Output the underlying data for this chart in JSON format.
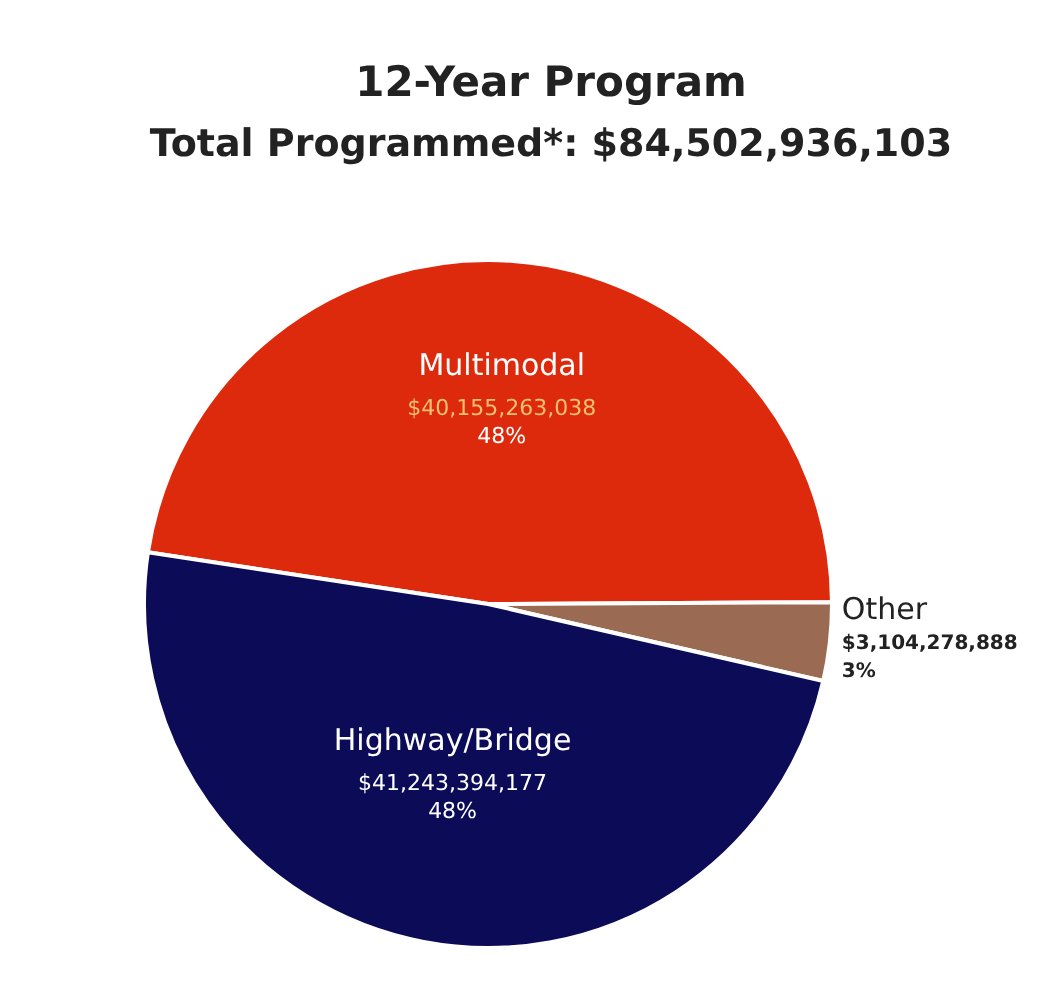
{
  "chart_data": {
    "type": "pie",
    "title": "12-Year Program",
    "subtitle": "Total Programmed*: $84,502,936,103",
    "categories": [
      "Multimodal",
      "Other",
      "Highway/Bridge"
    ],
    "values": [
      40155263038,
      3104278888,
      41243394177
    ],
    "colors": [
      "#dd2a0c",
      "#9a6a52",
      "#0b0b58"
    ],
    "value_labels": [
      "$40,155,263,038\n48%",
      "$3,104,278,888\n3%",
      "$41,243,394,177\n48%"
    ]
  }
}
